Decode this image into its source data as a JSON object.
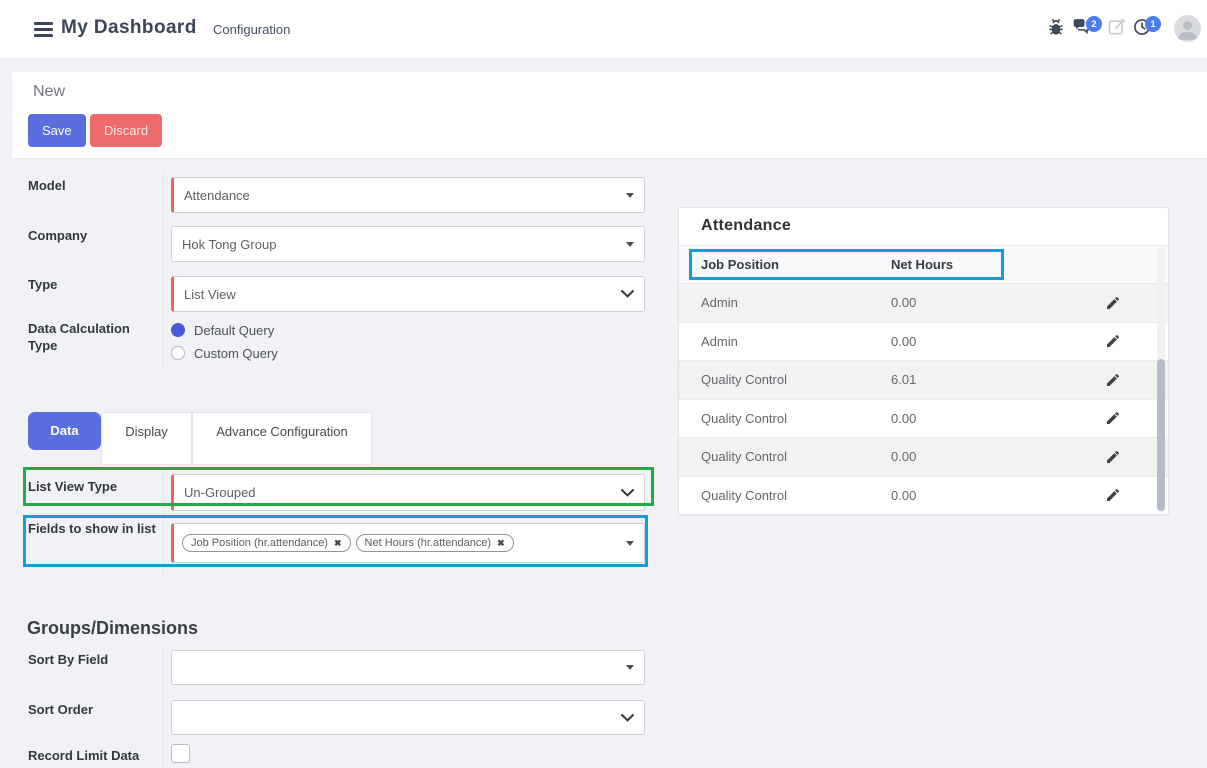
{
  "header": {
    "title": "My Dashboard",
    "menu": {
      "configuration": "Configuration"
    },
    "badges": {
      "messages": "2",
      "activities": "1"
    }
  },
  "record_bar": {
    "status": "New",
    "save": "Save",
    "discard": "Discard"
  },
  "form": {
    "model": {
      "label": "Model",
      "value": "Attendance"
    },
    "company": {
      "label": "Company",
      "value": "Hok Tong Group"
    },
    "type": {
      "label": "Type",
      "value": "List View"
    },
    "data_calculation_type": {
      "label": "Data Calculation Type",
      "options": [
        "Default Query",
        "Custom Query"
      ],
      "selected": "Default Query"
    }
  },
  "tabs": [
    {
      "label": "Data",
      "active": true
    },
    {
      "label": "Display",
      "active": false
    },
    {
      "label": "Advance Configuration",
      "active": false
    }
  ],
  "data_tab": {
    "list_view_type": {
      "label": "List View Type",
      "value": "Un-Grouped"
    },
    "fields_to_show": {
      "label": "Fields to show in list",
      "tags": [
        "Job Position (hr.attendance)",
        "Net Hours (hr.attendance)"
      ]
    }
  },
  "groups": {
    "heading": "Groups/Dimensions",
    "sort_by_field": {
      "label": "Sort By Field",
      "value": ""
    },
    "sort_order": {
      "label": "Sort Order",
      "value": ""
    },
    "record_limit_data": {
      "label": "Record Limit Data",
      "checked": false
    }
  },
  "preview": {
    "title": "Attendance",
    "columns": [
      "Job Position",
      "Net Hours"
    ],
    "rows": [
      {
        "job_position": "Admin",
        "net_hours": "0.00"
      },
      {
        "job_position": "Admin",
        "net_hours": "0.00"
      },
      {
        "job_position": "Quality Control",
        "net_hours": "6.01"
      },
      {
        "job_position": "Quality Control",
        "net_hours": "0.00"
      },
      {
        "job_position": "Quality Control",
        "net_hours": "0.00"
      },
      {
        "job_position": "Quality Control",
        "net_hours": "0.00"
      }
    ]
  },
  "colors": {
    "accent_blue": "#5a6ee0",
    "danger_red": "#ee6b6b",
    "required_red": "#ef6461",
    "badge_blue": "#4a7cf0",
    "highlight_green": "#28a745",
    "highlight_blue": "#1a9bd7"
  }
}
